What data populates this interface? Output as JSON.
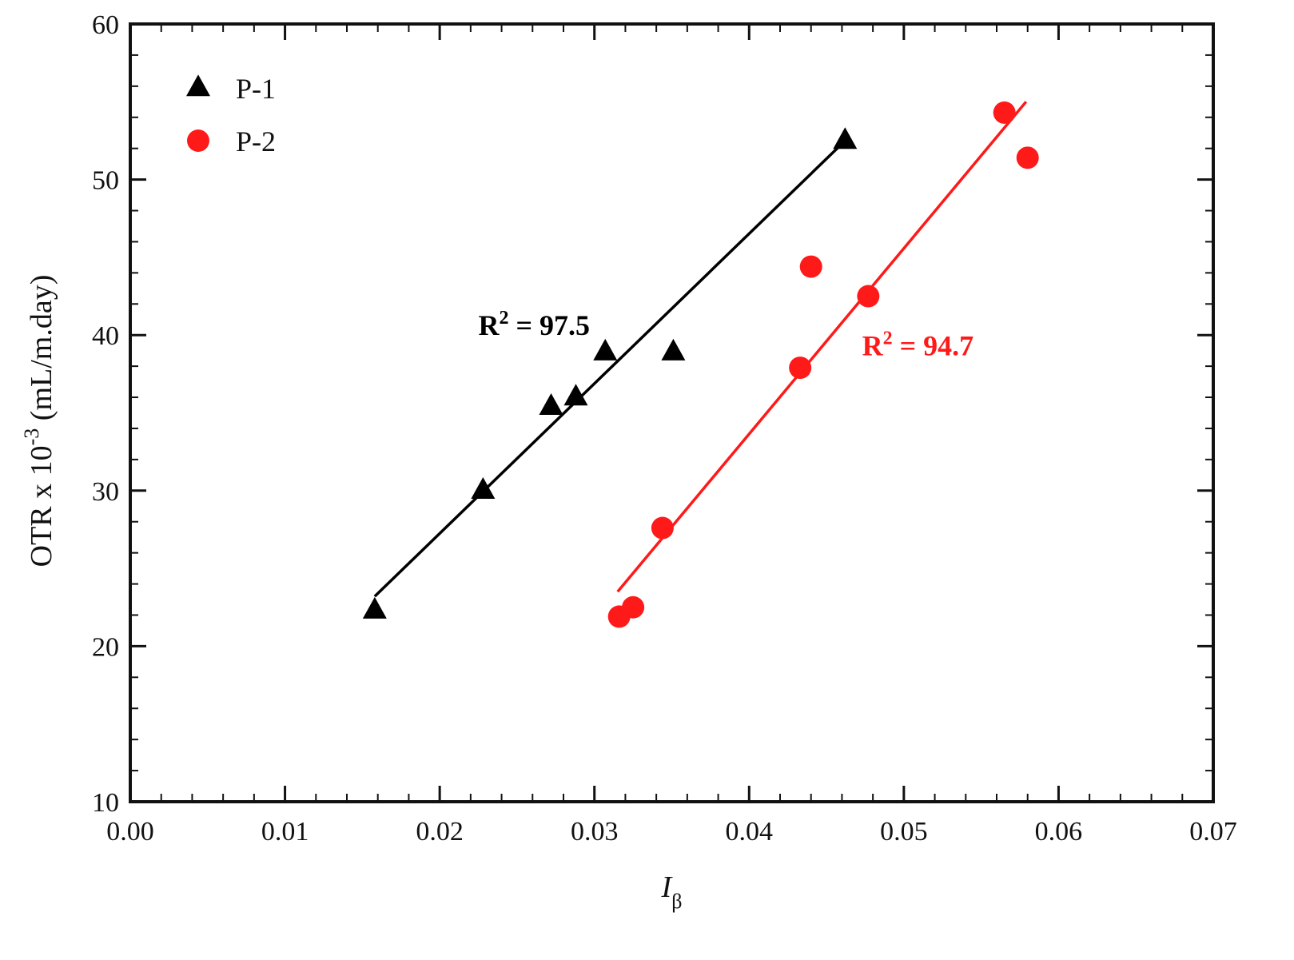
{
  "chart_data": {
    "type": "scatter",
    "xlabel": {
      "main": "I",
      "sub": "β"
    },
    "ylabel": {
      "main": "OTR x 10",
      "sup": "-3",
      "rest": " (mL/m.day)"
    },
    "xlim": [
      0.0,
      0.07
    ],
    "ylim": [
      10,
      60
    ],
    "xticks": [
      "0.00",
      "0.01",
      "0.02",
      "0.03",
      "0.04",
      "0.05",
      "0.06",
      "0.07"
    ],
    "yticks": [
      "10",
      "20",
      "30",
      "40",
      "50",
      "60"
    ],
    "grid": false,
    "legend_position": "top-left",
    "series": [
      {
        "name": "P-1",
        "marker": "triangle",
        "color": "#000000",
        "points": [
          [
            0.0158,
            22.3
          ],
          [
            0.0228,
            30.0
          ],
          [
            0.0272,
            35.4
          ],
          [
            0.0288,
            36.0
          ],
          [
            0.0307,
            38.9
          ],
          [
            0.0351,
            38.9
          ],
          [
            0.0462,
            52.5
          ]
        ],
        "fit": [
          [
            0.0158,
            23.2
          ],
          [
            0.046,
            52.3
          ]
        ],
        "annotation": {
          "text": "R",
          "sup": "2",
          "rest": " = 97.5",
          "x": 0.0225,
          "y": 40.0
        }
      },
      {
        "name": "P-2",
        "marker": "circle",
        "color": "#ff1a1a",
        "points": [
          [
            0.0316,
            21.9
          ],
          [
            0.0325,
            22.5
          ],
          [
            0.0344,
            27.6
          ],
          [
            0.0433,
            37.9
          ],
          [
            0.044,
            44.4
          ],
          [
            0.0477,
            42.5
          ],
          [
            0.0565,
            54.3
          ],
          [
            0.058,
            51.4
          ]
        ],
        "fit": [
          [
            0.0315,
            23.5
          ],
          [
            0.0579,
            55.0
          ]
        ],
        "annotation": {
          "text": "R",
          "sup": "2",
          "rest": " = 94.7",
          "x": 0.0473,
          "y": 38.7
        }
      }
    ]
  }
}
